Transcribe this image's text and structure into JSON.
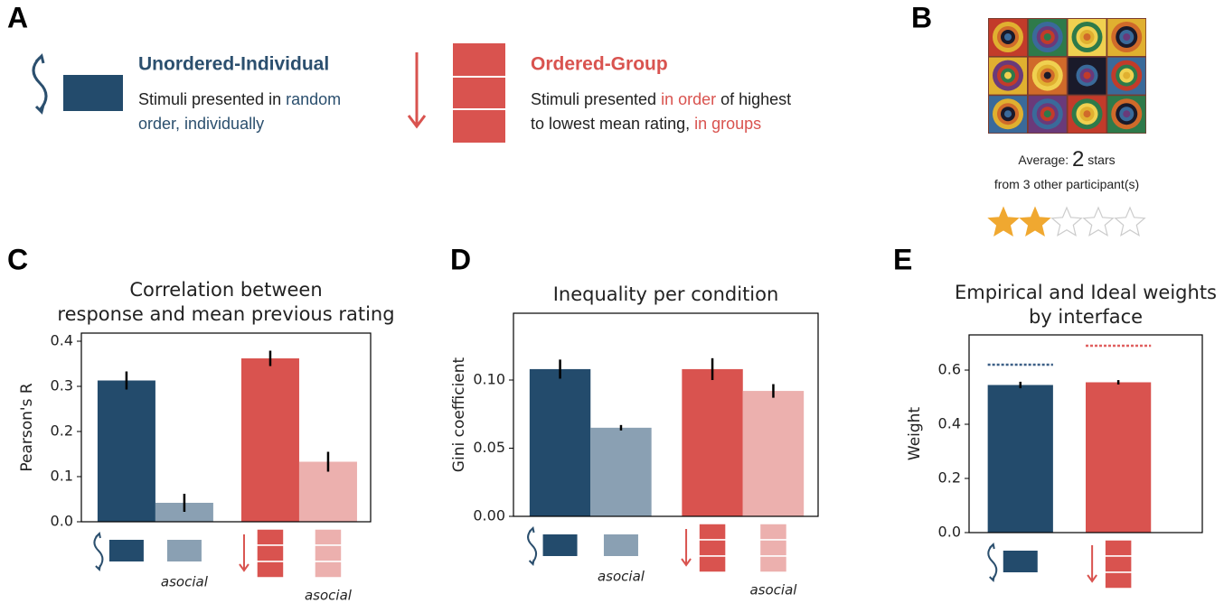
{
  "panel_labels": [
    "A",
    "B",
    "C",
    "D",
    "E"
  ],
  "panel_a": {
    "conditions": [
      {
        "title": "Unordered-Individual",
        "color": "#2b4f6e",
        "lines": [
          [
            {
              "text": "Stimuli presented in "
            },
            {
              "text": "random",
              "highlight": true
            }
          ],
          [
            {
              "text": "order, individually",
              "highlight": true
            }
          ]
        ]
      },
      {
        "title": "Ordered-Group",
        "color": "#d9534f",
        "lines": [
          [
            {
              "text": "Stimuli presented "
            },
            {
              "text": "in order",
              "highlight": true
            },
            {
              "text": " of highest"
            }
          ],
          [
            {
              "text": "to lowest mean rating, "
            },
            {
              "text": "in groups",
              "highlight": true
            }
          ]
        ]
      }
    ]
  },
  "panel_b": {
    "average_prefix": "Average: ",
    "rating": 2,
    "average_suffix": " stars",
    "count_prefix": "from ",
    "count": 3,
    "count_suffix": " other participant(s)",
    "star_color": "#f0a830"
  },
  "chart_data": [
    {
      "type": "bar",
      "title": [
        "Correlation between",
        "response and mean previous rating"
      ],
      "ylabel": "Pearson's R",
      "categories": [
        null,
        "asocial",
        null,
        "asocial"
      ],
      "values": [
        0.313,
        0.042,
        0.362,
        0.133
      ],
      "errors": [
        0.02,
        0.02,
        0.017,
        0.022
      ],
      "colors": [
        "#234b6c",
        "#8aa0b3",
        "#d9534f",
        "#ecb0ae"
      ],
      "ylim": [
        0,
        0.418
      ],
      "yticks": [
        {
          "value": 0,
          "label": "0.0"
        },
        0.1,
        0.2,
        0.3,
        0.4
      ]
    },
    {
      "type": "bar",
      "title": [
        "Inequality per condition"
      ],
      "ylabel": "Gini coefficient",
      "categories": [
        null,
        "asocial",
        null,
        "asocial"
      ],
      "values": [
        0.108,
        0.065,
        0.108,
        0.092
      ],
      "errors": [
        0.007,
        0.002,
        0.008,
        0.005
      ],
      "colors": [
        "#234b6c",
        "#8aa0b3",
        "#d9534f",
        "#ecb0ae"
      ],
      "ylim": [
        0,
        0.149
      ],
      "yticks": [
        {
          "value": 0,
          "label": "0.00"
        },
        0.05,
        {
          "value": 0.1,
          "label": "0.10"
        }
      ]
    },
    {
      "type": "bar",
      "title": [
        "Empirical and Ideal weights",
        "by interface"
      ],
      "ylabel": "Weight",
      "categories": [
        null,
        null
      ],
      "values": [
        0.545,
        0.555
      ],
      "errors": [
        0.012,
        0.008
      ],
      "colors": [
        "#234b6c",
        "#d9534f"
      ],
      "ideal_values": [
        0.62,
        0.69
      ],
      "ideal_colors": [
        "#3b5f86",
        "#e06060"
      ],
      "ylim": [
        0,
        0.73
      ],
      "yticks": [
        {
          "value": 0,
          "label": "0.0"
        },
        0.2,
        0.4,
        0.6
      ]
    }
  ]
}
